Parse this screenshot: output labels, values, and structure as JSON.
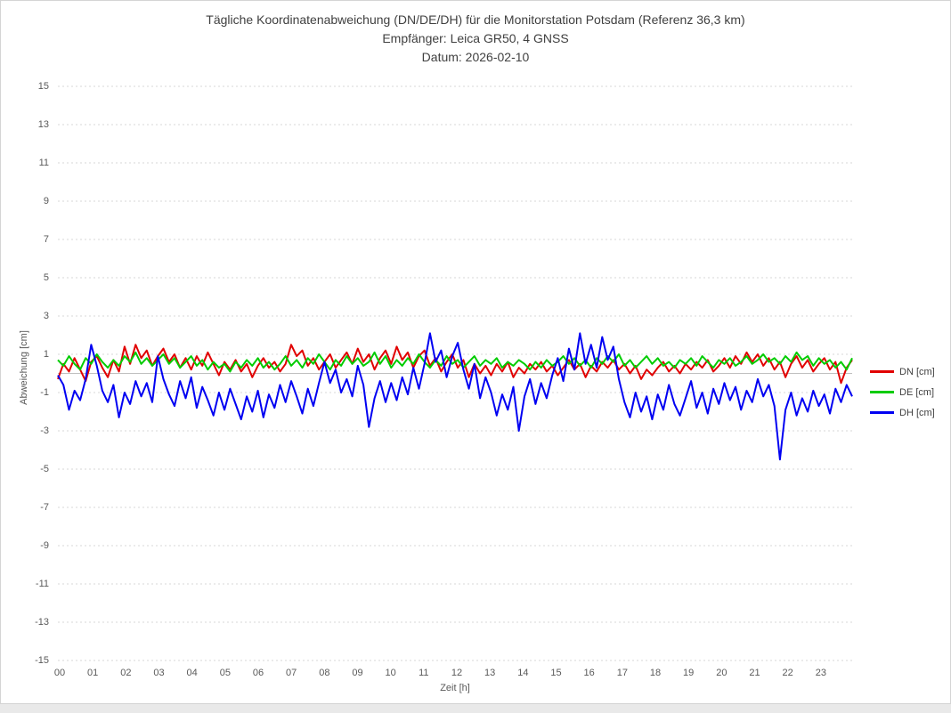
{
  "chart_data": {
    "type": "line",
    "title_lines": [
      "Tägliche Koordinatenabweichung (DN/DE/DH) für die Monitorstation Potsdam (Referenz 36,3 km)",
      "Empfänger: Leica GR50, 4 GNSS",
      "Datum: 2026-02-10"
    ],
    "xlabel": "Zeit [h]",
    "ylabel": "Abweichung [cm]",
    "ylim": [
      -15,
      15
    ],
    "grid": "dotted-horizontal",
    "legend_position": "right",
    "y_ticks": [
      15,
      13,
      11,
      9,
      7,
      5,
      3,
      1,
      -1,
      -3,
      -5,
      -7,
      -9,
      -11,
      -13,
      -15
    ],
    "x_ticks": [
      "00",
      "01",
      "02",
      "03",
      "04",
      "05",
      "06",
      "07",
      "08",
      "09",
      "10",
      "11",
      "12",
      "13",
      "14",
      "15",
      "16",
      "17",
      "18",
      "19",
      "20",
      "21",
      "22",
      "23"
    ],
    "points_per_hour": 6,
    "colors": {
      "grid": "#d7d7d7",
      "zero_axis": "#c0c0c0",
      "text": "#595959",
      "title": "#404040"
    },
    "series": [
      {
        "name": "DN [cm]",
        "color": "#e10000",
        "values": [
          -0.3,
          0.5,
          0.1,
          0.8,
          0.2,
          -0.4,
          0.6,
          0.9,
          0.3,
          -0.2,
          0.7,
          0.1,
          1.4,
          0.5,
          1.5,
          0.8,
          1.2,
          0.4,
          0.9,
          1.3,
          0.6,
          1.0,
          0.3,
          0.8,
          0.2,
          0.9,
          0.4,
          1.1,
          0.5,
          -0.1,
          0.6,
          0.2,
          0.7,
          0.1,
          0.5,
          -0.2,
          0.4,
          0.8,
          0.3,
          0.6,
          0.1,
          0.5,
          1.5,
          0.9,
          1.2,
          0.4,
          0.8,
          0.2,
          0.6,
          1.0,
          0.3,
          0.7,
          1.1,
          0.5,
          1.3,
          0.6,
          1.0,
          0.2,
          0.8,
          1.2,
          0.5,
          1.4,
          0.7,
          1.1,
          0.3,
          0.9,
          1.2,
          0.4,
          0.8,
          0.1,
          0.6,
          1.0,
          0.3,
          0.7,
          -0.2,
          0.5,
          0.0,
          0.4,
          -0.1,
          0.5,
          0.1,
          0.6,
          -0.2,
          0.3,
          0.0,
          0.5,
          0.2,
          0.6,
          0.1,
          0.4,
          -0.1,
          0.3,
          0.7,
          0.2,
          0.5,
          -0.2,
          0.4,
          0.1,
          0.6,
          0.3,
          0.7,
          0.2,
          0.5,
          0.0,
          0.4,
          -0.3,
          0.2,
          -0.1,
          0.3,
          0.6,
          0.1,
          0.4,
          0.0,
          0.5,
          0.2,
          0.6,
          0.3,
          0.7,
          0.1,
          0.4,
          0.8,
          0.3,
          0.9,
          0.5,
          1.1,
          0.6,
          1.0,
          0.4,
          0.8,
          0.2,
          0.6,
          -0.2,
          0.5,
          0.9,
          0.3,
          0.7,
          0.1,
          0.5,
          0.8,
          0.2,
          0.6,
          -0.5,
          0.3,
          0.7
        ]
      },
      {
        "name": "DE [cm]",
        "color": "#00cc00",
        "values": [
          0.7,
          0.4,
          0.9,
          0.5,
          0.2,
          0.8,
          0.5,
          1.0,
          0.6,
          0.3,
          0.7,
          0.4,
          0.9,
          0.6,
          1.1,
          0.5,
          0.8,
          0.4,
          0.7,
          1.0,
          0.5,
          0.8,
          0.3,
          0.6,
          0.9,
          0.4,
          0.7,
          0.2,
          0.6,
          0.3,
          0.5,
          0.1,
          0.6,
          0.3,
          0.7,
          0.4,
          0.8,
          0.3,
          0.6,
          0.2,
          0.5,
          0.9,
          0.4,
          0.7,
          0.3,
          0.8,
          0.5,
          1.0,
          0.6,
          0.2,
          0.7,
          0.4,
          0.9,
          0.5,
          0.8,
          0.4,
          0.6,
          1.1,
          0.5,
          0.9,
          0.3,
          0.7,
          0.4,
          0.8,
          0.5,
          1.0,
          0.6,
          0.3,
          0.7,
          0.4,
          0.9,
          0.5,
          0.7,
          0.3,
          0.6,
          0.9,
          0.4,
          0.7,
          0.5,
          0.8,
          0.3,
          0.6,
          0.4,
          0.7,
          0.5,
          0.2,
          0.6,
          0.3,
          0.7,
          0.4,
          0.6,
          0.9,
          0.5,
          0.8,
          0.4,
          0.7,
          0.3,
          0.8,
          0.5,
          0.9,
          0.6,
          1.0,
          0.4,
          0.7,
          0.3,
          0.6,
          0.9,
          0.5,
          0.8,
          0.4,
          0.6,
          0.3,
          0.7,
          0.5,
          0.8,
          0.4,
          0.9,
          0.6,
          0.3,
          0.7,
          0.5,
          0.8,
          0.4,
          0.6,
          0.9,
          0.5,
          0.7,
          1.0,
          0.6,
          0.8,
          0.5,
          0.9,
          0.6,
          1.1,
          0.7,
          0.9,
          0.4,
          0.8,
          0.5,
          0.7,
          0.3,
          0.6,
          0.2,
          0.8
        ]
      },
      {
        "name": "DH [cm]",
        "color": "#0000f2",
        "values": [
          -0.1,
          -0.6,
          -1.9,
          -0.9,
          -1.4,
          -0.3,
          1.5,
          0.4,
          -0.9,
          -1.5,
          -0.6,
          -2.3,
          -1.0,
          -1.6,
          -0.4,
          -1.2,
          -0.5,
          -1.5,
          0.9,
          -0.3,
          -1.1,
          -1.7,
          -0.4,
          -1.3,
          -0.2,
          -1.8,
          -0.7,
          -1.4,
          -2.2,
          -1.0,
          -1.9,
          -0.8,
          -1.6,
          -2.4,
          -1.2,
          -2.0,
          -0.9,
          -2.3,
          -1.1,
          -1.8,
          -0.6,
          -1.5,
          -0.4,
          -1.2,
          -2.1,
          -0.8,
          -1.7,
          -0.5,
          0.6,
          -0.5,
          0.2,
          -1.0,
          -0.3,
          -1.2,
          0.4,
          -0.6,
          -2.8,
          -1.3,
          -0.4,
          -1.5,
          -0.5,
          -1.4,
          -0.2,
          -1.1,
          0.3,
          -0.8,
          0.5,
          2.1,
          0.6,
          1.2,
          -0.2,
          0.9,
          1.6,
          0.2,
          -0.8,
          0.5,
          -1.3,
          -0.2,
          -1.0,
          -2.2,
          -1.1,
          -1.9,
          -0.7,
          -3.0,
          -1.2,
          -0.3,
          -1.6,
          -0.5,
          -1.3,
          -0.1,
          0.8,
          -0.4,
          1.3,
          0.2,
          2.1,
          0.5,
          1.5,
          0.3,
          1.9,
          0.7,
          1.4,
          -0.3,
          -1.5,
          -2.3,
          -1.0,
          -2.0,
          -1.2,
          -2.4,
          -1.1,
          -1.9,
          -0.6,
          -1.6,
          -2.2,
          -1.3,
          -0.4,
          -1.8,
          -1.0,
          -2.1,
          -0.8,
          -1.6,
          -0.5,
          -1.4,
          -0.7,
          -1.9,
          -0.9,
          -1.5,
          -0.3,
          -1.2,
          -0.6,
          -1.7,
          -4.5,
          -1.9,
          -1.0,
          -2.2,
          -1.3,
          -2.0,
          -0.9,
          -1.7,
          -1.1,
          -2.1,
          -0.8,
          -1.5,
          -0.6,
          -1.2
        ]
      }
    ]
  }
}
